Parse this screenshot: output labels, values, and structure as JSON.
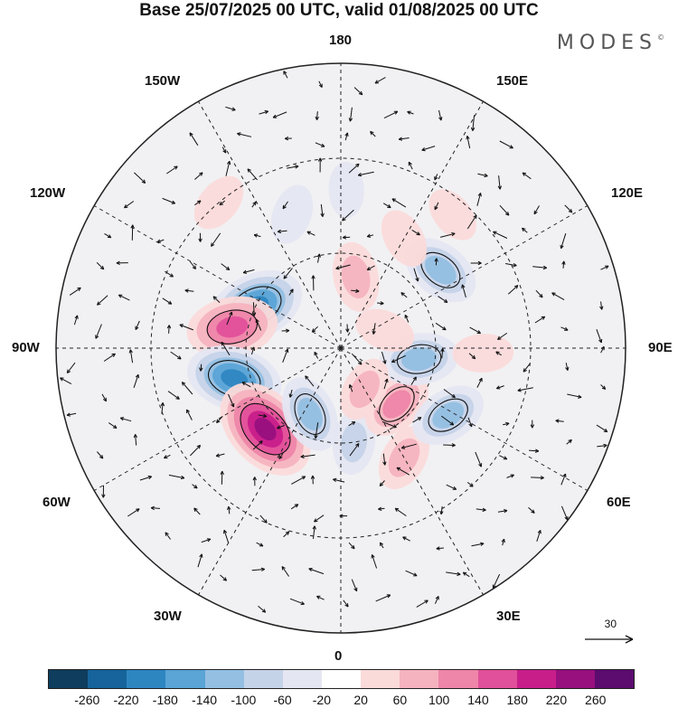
{
  "title": "Base 25/07/2025 00 UTC, valid 01/08/2025 00 UTC",
  "brand": {
    "name": "MODES",
    "mark": "©"
  },
  "longitude_labels": {
    "top": "180",
    "bottom": "0",
    "left": "90W",
    "right": "90E",
    "upper_left": "150W",
    "upper_right": "150E",
    "mid_left": "120W",
    "mid_right": "120E",
    "lower_left": "60W",
    "lower_right": "60E",
    "bottom_left": "30W",
    "bottom_right": "30E"
  },
  "wind_reference": {
    "label": "30"
  },
  "colorbar": {
    "colors": [
      "#0f3d5e",
      "#16649b",
      "#2e86c1",
      "#5aa4d6",
      "#94bfe2",
      "#c5d3e8",
      "#e4e6f2",
      "#ffffff",
      "#fbdada",
      "#f5b3bf",
      "#ee86a9",
      "#e1509a",
      "#c81e8a",
      "#97107e",
      "#5b0c6e"
    ],
    "ticks": [
      "-260",
      "-220",
      "-180",
      "-140",
      "-100",
      "-60",
      "-20",
      "20",
      "60",
      "100",
      "140",
      "180",
      "220",
      "260"
    ]
  },
  "anomalies": [
    {
      "lon": -116,
      "lat": 60,
      "value": -220
    },
    {
      "lon": -101,
      "lat": 55,
      "value": 190
    },
    {
      "lon": -74,
      "lat": 55,
      "value": -210
    },
    {
      "lon": -43,
      "lat": 55,
      "value": 260
    },
    {
      "lon": -25,
      "lat": 67,
      "value": -130
    },
    {
      "lon": 8,
      "lat": 60,
      "value": -80
    },
    {
      "lon": 30,
      "lat": 50,
      "value": 90
    },
    {
      "lon": 45,
      "lat": 65,
      "value": 120
    },
    {
      "lon": 58,
      "lat": 50,
      "value": -130
    },
    {
      "lon": 82,
      "lat": 65,
      "value": -140
    },
    {
      "lon": 88,
      "lat": 45,
      "value": 60
    },
    {
      "lon": 128,
      "lat": 50,
      "value": -140
    },
    {
      "lon": 168,
      "lat": 67,
      "value": 100
    },
    {
      "lon": 150,
      "lat": 50,
      "value": 60
    },
    {
      "lon": 178,
      "lat": 40,
      "value": -40
    },
    {
      "lon": -160,
      "lat": 45,
      "value": -60
    },
    {
      "lon": -140,
      "lat": 30,
      "value": 60
    },
    {
      "lon": 140,
      "lat": 35,
      "value": 50
    },
    {
      "lon": 30,
      "lat": 75,
      "value": 80
    },
    {
      "lon": 112,
      "lat": 75,
      "value": 60
    }
  ]
}
